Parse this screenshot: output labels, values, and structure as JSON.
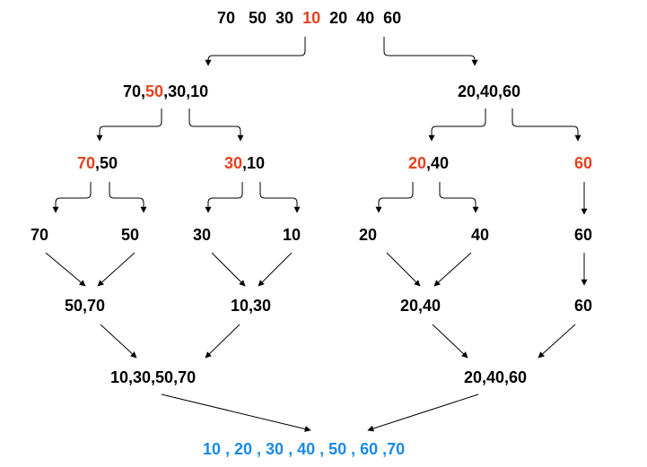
{
  "diagram": {
    "colors": {
      "text": "#000000",
      "highlight": "#e8401c",
      "result": "#1a8ae6",
      "edge": "#000000"
    },
    "root": {
      "before": "70   50  30  ",
      "highlight": "10",
      "after": "  20  40  60"
    },
    "level1": {
      "left": {
        "before": "70,",
        "highlight": "50",
        "after": ",30,10"
      },
      "right": {
        "before": "20,40,60",
        "highlight": "",
        "after": ""
      }
    },
    "level2": {
      "a": {
        "before": "",
        "highlight": "70",
        "after": ",50"
      },
      "b": {
        "before": "",
        "highlight": "30",
        "after": ",10"
      },
      "c": {
        "before": "",
        "highlight": "20",
        "after": ",40"
      },
      "d": {
        "before": "",
        "highlight": "60",
        "after": ""
      }
    },
    "leaves": {
      "n1": "70",
      "n2": "50",
      "n3": "30",
      "n4": "10",
      "n5": "20",
      "n6": "40",
      "n7": "60"
    },
    "merge1": {
      "m1": "50,70",
      "m2": "10,30",
      "m3": "20,40",
      "m4": "60"
    },
    "merge2": {
      "left": "10,30,50,70",
      "right": "20,40,60"
    },
    "result": "10 , 20 , 30 , 40 , 50 , 60 ,70"
  }
}
